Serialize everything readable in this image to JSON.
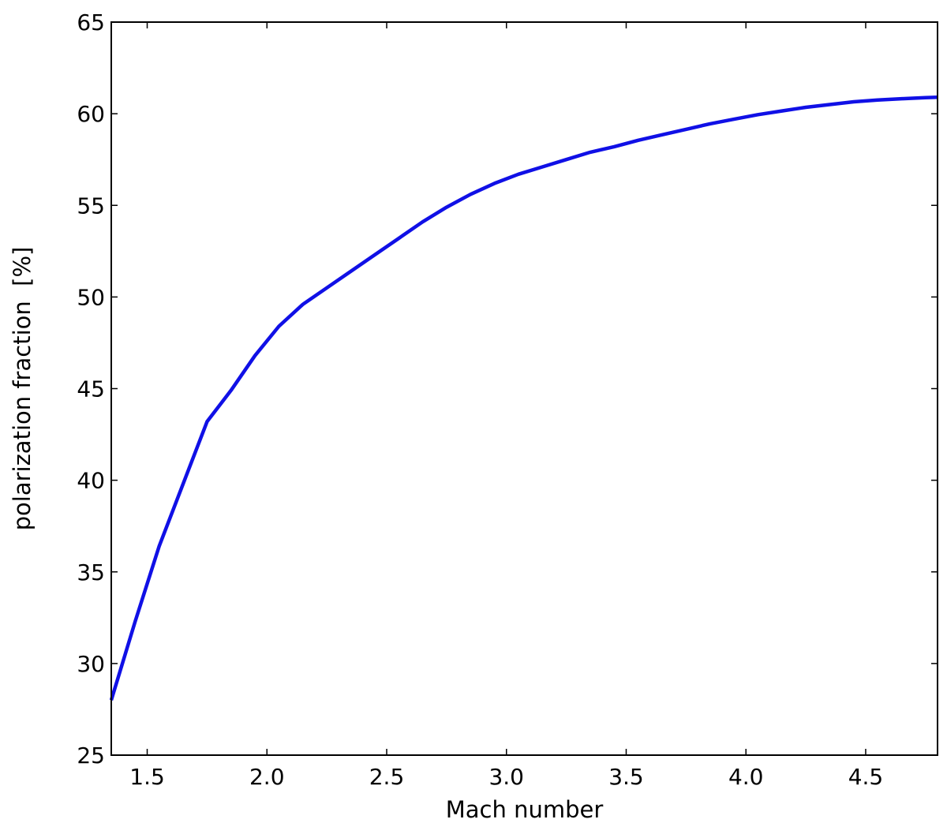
{
  "chart_data": {
    "type": "line",
    "title": "",
    "xlabel": "Mach number",
    "ylabel": "polarization fraction  [%]",
    "xlim": [
      1.35,
      4.8
    ],
    "ylim": [
      25,
      65
    ],
    "x_ticks": [
      1.5,
      2.0,
      2.5,
      3.0,
      3.5,
      4.0,
      4.5
    ],
    "x_tick_labels": [
      "1.5",
      "2.0",
      "2.5",
      "3.0",
      "3.5",
      "4.0",
      "4.5"
    ],
    "y_ticks": [
      25,
      30,
      35,
      40,
      45,
      50,
      55,
      60,
      65
    ],
    "y_tick_labels": [
      "25",
      "30",
      "35",
      "40",
      "45",
      "50",
      "55",
      "60",
      "65"
    ],
    "grid": false,
    "legend": "none",
    "series": [
      {
        "color": "#1010e6",
        "x": [
          1.35,
          1.45,
          1.55,
          1.65,
          1.75,
          1.85,
          1.95,
          2.05,
          2.15,
          2.25,
          2.35,
          2.45,
          2.55,
          2.65,
          2.75,
          2.85,
          2.95,
          3.05,
          3.15,
          3.25,
          3.35,
          3.45,
          3.55,
          3.65,
          3.75,
          3.85,
          3.95,
          4.05,
          4.15,
          4.25,
          4.35,
          4.45,
          4.55,
          4.65,
          4.75,
          4.8
        ],
        "y": [
          28.0,
          32.3,
          36.4,
          39.8,
          43.2,
          44.9,
          46.8,
          48.4,
          49.6,
          50.5,
          51.4,
          52.3,
          53.2,
          54.1,
          54.9,
          55.6,
          56.2,
          56.7,
          57.1,
          57.5,
          57.9,
          58.2,
          58.55,
          58.85,
          59.15,
          59.45,
          59.7,
          59.95,
          60.15,
          60.35,
          60.5,
          60.65,
          60.75,
          60.82,
          60.88,
          60.9
        ]
      }
    ]
  }
}
